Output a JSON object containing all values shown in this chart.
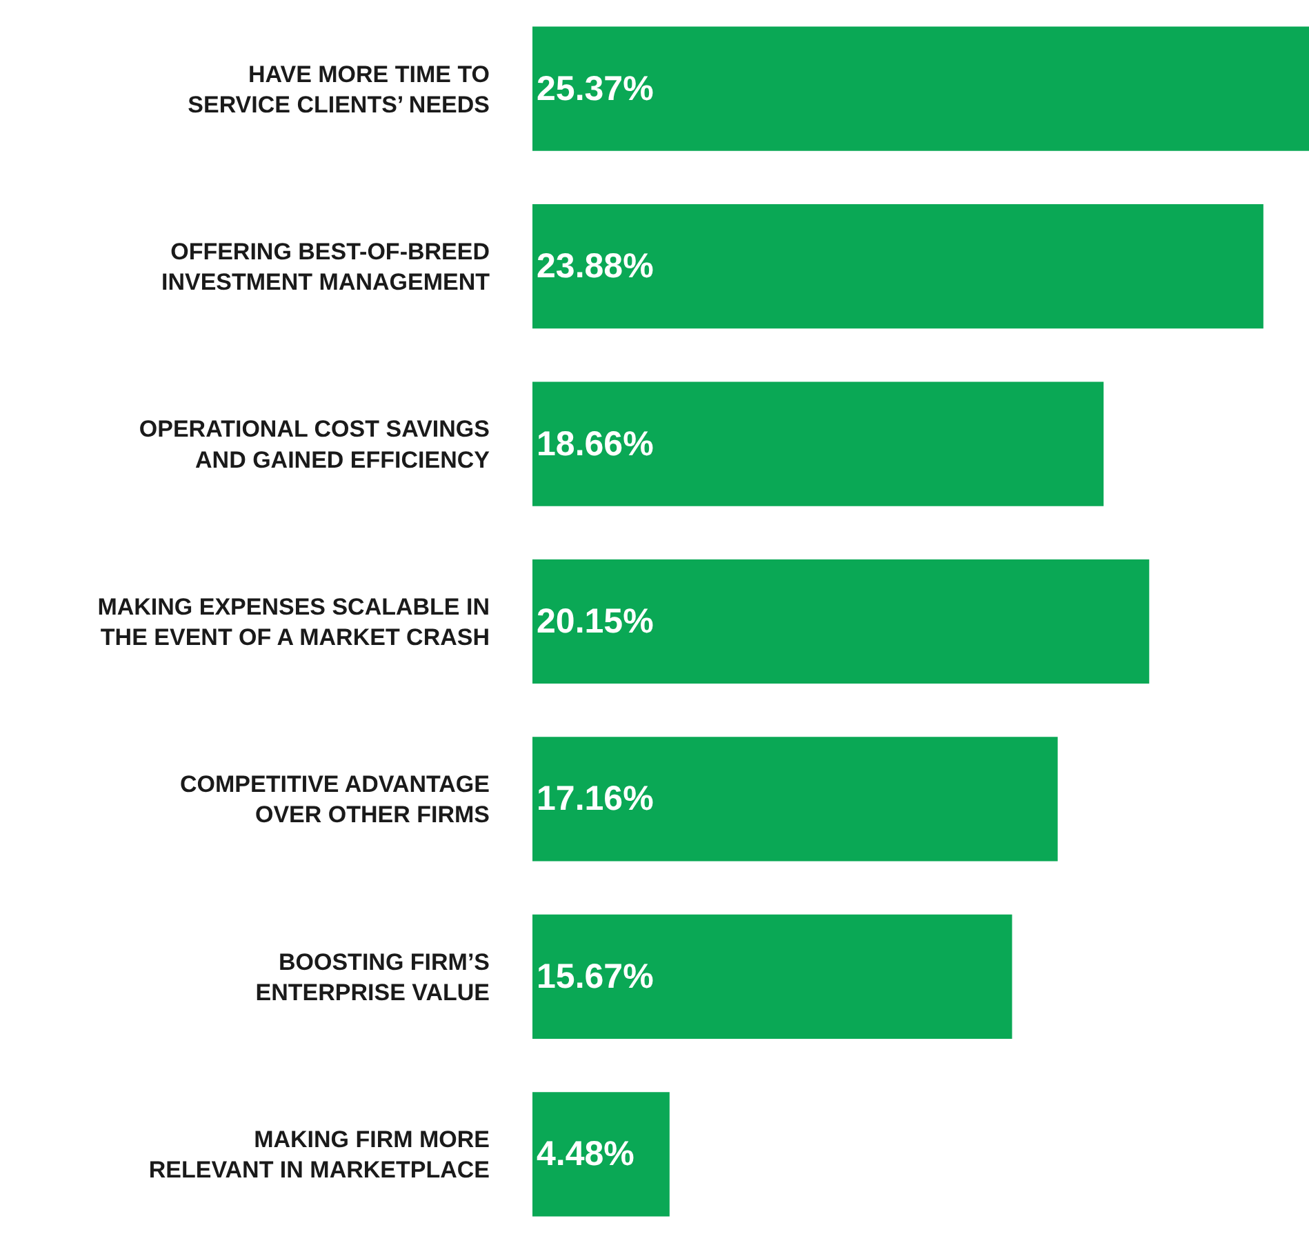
{
  "chart_data": {
    "type": "bar",
    "orientation": "horizontal",
    "categories": [
      "HAVE MORE TIME TO\nSERVICE CLIENTS’ NEEDS",
      "OFFERING BEST-OF-BREED\nINVESTMENT MANAGEMENT",
      "OPERATIONAL COST SAVINGS\nAND GAINED EFFICIENCY",
      "MAKING EXPENSES SCALABLE IN\nTHE EVENT OF A MARKET CRASH",
      "COMPETITIVE ADVANTAGE\nOVER OTHER FIRMS",
      "BOOSTING FIRM’S\nENTERPRISE VALUE",
      "MAKING FIRM MORE\nRELEVANT IN MARKETPLACE"
    ],
    "values": [
      25.37,
      23.88,
      18.66,
      20.15,
      17.16,
      15.67,
      4.48
    ],
    "value_labels": [
      "25.37%",
      "23.88%",
      "18.66%",
      "20.15%",
      "17.16%",
      "15.67%",
      "4.48%"
    ],
    "color": "#0aa855",
    "xlim": [
      0,
      25.37
    ],
    "tick_labels": "y",
    "legend": false
  }
}
